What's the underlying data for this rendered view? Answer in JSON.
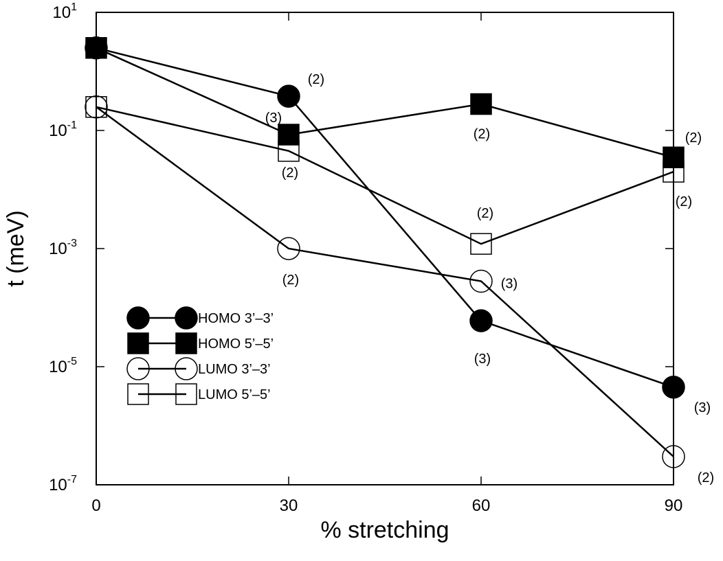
{
  "chart_data": {
    "type": "line",
    "xlabel": "% stretching",
    "ylabel": "t (meV)",
    "x_ticks": [
      "0",
      "30",
      "60",
      "90"
    ],
    "xlim": [
      0,
      90
    ],
    "y_scale": "log",
    "ylim": [
      1e-07,
      10
    ],
    "y_ticks": [
      {
        "value": 10,
        "base": "10",
        "exp": "1"
      },
      {
        "value": 0.1,
        "base": "10",
        "exp": "-1"
      },
      {
        "value": 0.001,
        "base": "10",
        "exp": "-3"
      },
      {
        "value": 1e-05,
        "base": "10",
        "exp": "-5"
      },
      {
        "value": 1e-07,
        "base": "10",
        "exp": "-7"
      }
    ],
    "grid": false,
    "legend_position": "lower-left",
    "series": [
      {
        "name": "HOMO 3’–3’",
        "marker": "filled-circle",
        "x": [
          0,
          30,
          60,
          90
        ],
        "y": [
          2.5,
          0.38,
          6e-05,
          4.5e-06
        ]
      },
      {
        "name": "HOMO 5’–5’",
        "marker": "filled-square",
        "x": [
          0,
          30,
          60,
          90
        ],
        "y": [
          2.5,
          0.085,
          0.28,
          0.035
        ]
      },
      {
        "name": "LUMO 3’–3’",
        "marker": "open-circle",
        "x": [
          0,
          30,
          60,
          90
        ],
        "y": [
          0.25,
          0.001,
          0.00028,
          3e-07
        ]
      },
      {
        "name": "LUMO 5’–5’",
        "marker": "open-square",
        "x": [
          0,
          30,
          60,
          90
        ],
        "y": [
          0.25,
          0.045,
          0.0012,
          0.02
        ]
      }
    ],
    "annotations": [
      {
        "text": "(2)",
        "series": 0,
        "point": 1
      },
      {
        "text": "(3)",
        "series": 0,
        "point": 2
      },
      {
        "text": "(3)",
        "series": 0,
        "point": 3
      },
      {
        "text": "(3)",
        "series": 1,
        "point": 1
      },
      {
        "text": "(2)",
        "series": 1,
        "point": 2
      },
      {
        "text": "(2)",
        "series": 1,
        "point": 3
      },
      {
        "text": "(2)",
        "series": 2,
        "point": 1
      },
      {
        "text": "(3)",
        "series": 2,
        "point": 2
      },
      {
        "text": "(2)",
        "series": 2,
        "point": 3
      },
      {
        "text": "(2)",
        "series": 3,
        "point": 1
      },
      {
        "text": "(2)",
        "series": 3,
        "point": 2
      },
      {
        "text": "(2)",
        "series": 3,
        "point": 3
      }
    ]
  }
}
